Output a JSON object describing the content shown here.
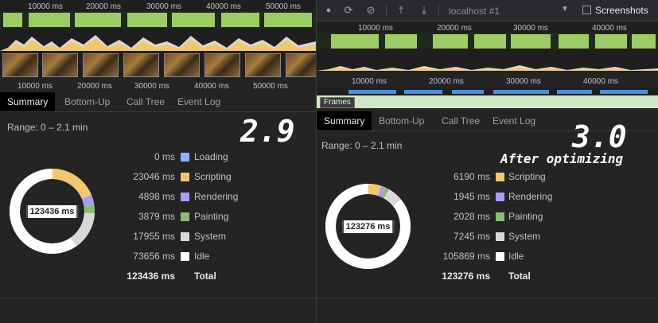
{
  "colors": {
    "loading": "#8ab4f8",
    "scripting": "#f2c86d",
    "rendering": "#aa9cf5",
    "painting": "#8ebb74",
    "system": "#d9d9d9",
    "idle": "#ffffff"
  },
  "left": {
    "overview_ticks": [
      "10000 ms",
      "20000 ms",
      "30000 ms",
      "40000 ms",
      "50000 ms"
    ],
    "ruler_ticks": [
      "10000 ms",
      "20000 ms",
      "30000 ms",
      "40000 ms",
      "50000 ms"
    ],
    "tabs": [
      "Summary",
      "Bottom-Up",
      "Call Tree",
      "Event Log"
    ],
    "range": "Range: 0 – 2.1 min",
    "version": "2.9",
    "total_center": "123436 ms",
    "legend": [
      {
        "value": "0 ms",
        "label": "Loading",
        "color": "#8ab4f8"
      },
      {
        "value": "23046 ms",
        "label": "Scripting",
        "color": "#f2c86d"
      },
      {
        "value": "4898 ms",
        "label": "Rendering",
        "color": "#aa9cf5"
      },
      {
        "value": "3879 ms",
        "label": "Painting",
        "color": "#8ebb74"
      },
      {
        "value": "17955 ms",
        "label": "System",
        "color": "#d9d9d9"
      },
      {
        "value": "73656 ms",
        "label": "Idle",
        "color": "#ffffff"
      }
    ],
    "total": {
      "value": "123436 ms",
      "label": "Total"
    },
    "segments": [
      0,
      23046,
      4898,
      3879,
      17955,
      73656
    ]
  },
  "right": {
    "toolbar": {
      "target": "localhost #1",
      "screenshots_label": "Screenshots",
      "screenshots_checked": false
    },
    "overview_ticks": [
      "10000 ms",
      "20000 ms",
      "30000 ms",
      "40000 ms"
    ],
    "ruler_ticks": [
      "10000 ms",
      "20000 ms",
      "30000 ms",
      "40000 ms"
    ],
    "frames_label": "Frames",
    "tabs": [
      "Summary",
      "Bottom-Up",
      "Call Tree",
      "Event Log"
    ],
    "range": "Range: 0 – 2.1 min",
    "version": "3.0",
    "note": "After optimizing",
    "total_center": "123276 ms",
    "legend": [
      {
        "value": "6190 ms",
        "label": "Scripting",
        "color": "#f2c86d"
      },
      {
        "value": "1945 ms",
        "label": "Rendering",
        "color": "#aa9cf5"
      },
      {
        "value": "2028 ms",
        "label": "Painting",
        "color": "#8ebb74"
      },
      {
        "value": "7245 ms",
        "label": "System",
        "color": "#d9d9d9"
      },
      {
        "value": "105869 ms",
        "label": "Idle",
        "color": "#ffffff"
      }
    ],
    "total": {
      "value": "123276 ms",
      "label": "Total"
    },
    "segments": [
      6190,
      1945,
      2028,
      7245,
      105869
    ]
  }
}
